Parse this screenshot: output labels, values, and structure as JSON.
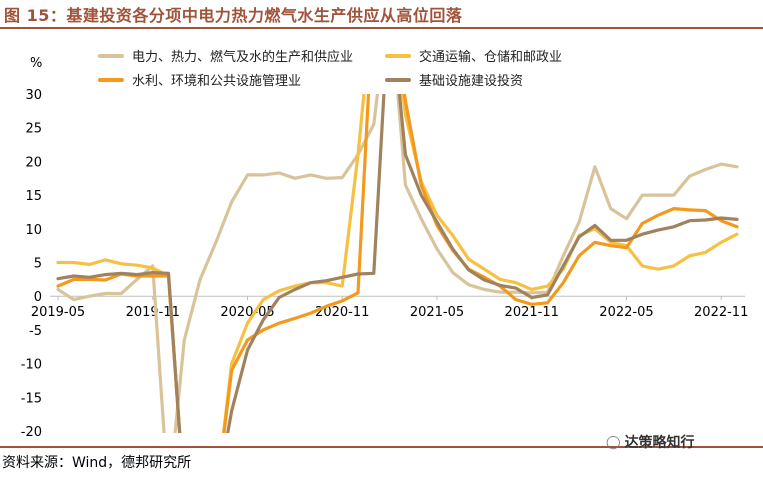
{
  "header": {
    "title": "图 15：基建投资各分项中电力热力燃气水生产供应从高位回落"
  },
  "footer": {
    "source": "资料来源：Wind，德邦研究所",
    "watermark": "达策略知行"
  },
  "colors": {
    "accent": "#a0523a"
  },
  "chart_data": {
    "type": "line",
    "ylabel": "%",
    "ylim": [
      -20,
      30
    ],
    "yticks": [
      30,
      25,
      20,
      15,
      10,
      5,
      0,
      -5,
      -10,
      -15,
      -20
    ],
    "xtick_labels": [
      "2019-05",
      "2019-11",
      "2020-05",
      "2020-11",
      "2021-05",
      "2021-11",
      "2022-05",
      "2022-11"
    ],
    "x": [
      "2019-05",
      "2019-06",
      "2019-07",
      "2019-08",
      "2019-09",
      "2019-10",
      "2019-11",
      "2019-12",
      "2020-01",
      "2020-02",
      "2020-03",
      "2020-04",
      "2020-05",
      "2020-06",
      "2020-07",
      "2020-08",
      "2020-09",
      "2020-10",
      "2020-11",
      "2020-12",
      "2021-01",
      "2021-02",
      "2021-03",
      "2021-04",
      "2021-05",
      "2021-06",
      "2021-07",
      "2021-08",
      "2021-09",
      "2021-10",
      "2021-11",
      "2021-12",
      "2022-01",
      "2022-02",
      "2022-03",
      "2022-04",
      "2022-05",
      "2022-06",
      "2022-07",
      "2022-08",
      "2022-09",
      "2022-10",
      "2022-11",
      "2022-12"
    ],
    "series": [
      {
        "name": "电力、热力、燃气及水的生产和供应业",
        "color": "#d9c39a",
        "values": [
          1.0,
          -0.5,
          0.0,
          0.4,
          0.4,
          2.5,
          4.5,
          null,
          -6.5,
          2.5,
          8.0,
          14.0,
          18.0,
          18.0,
          18.3,
          17.5,
          18.0,
          17.5,
          17.6,
          21.0,
          25.5,
          null,
          16.5,
          11.5,
          7.0,
          3.5,
          1.7,
          1.0,
          0.6,
          0.6,
          0.5,
          0.6,
          6.0,
          11.0,
          19.2,
          13.0,
          11.5,
          15.0,
          15.0,
          15.0,
          17.8,
          18.8,
          19.6,
          19.2
        ]
      },
      {
        "name": "交通运输、仓储和邮政业",
        "color": "#f6c142",
        "values": [
          5.0,
          5.0,
          4.7,
          5.4,
          4.8,
          4.6,
          4.2,
          3.0,
          null,
          null,
          null,
          -10.0,
          -4.0,
          -0.5,
          0.8,
          1.5,
          2.0,
          2.0,
          1.5,
          21.0,
          null,
          null,
          27.0,
          17.0,
          12.0,
          9.0,
          5.5,
          4.0,
          2.5,
          2.0,
          1.0,
          1.5,
          4.0,
          9.0,
          10.0,
          8.0,
          7.5,
          4.5,
          4.0,
          4.5,
          6.0,
          6.5,
          8.0,
          9.2
        ]
      },
      {
        "name": "水利、环境和公共设施管理业",
        "color": "#f39a1e",
        "values": [
          1.5,
          2.5,
          2.5,
          2.4,
          3.3,
          3.0,
          3.0,
          3.0,
          null,
          null,
          null,
          -11.0,
          -6.5,
          -5.0,
          -4.0,
          -3.3,
          -2.5,
          -1.5,
          -0.7,
          0.5,
          null,
          null,
          29.0,
          16.5,
          10.5,
          6.8,
          4.0,
          2.8,
          1.5,
          -0.5,
          -1.2,
          -1.0,
          2.0,
          6.0,
          8.0,
          7.5,
          7.2,
          10.8,
          12.0,
          13.0,
          12.8,
          12.7,
          11.2,
          10.3
        ]
      },
      {
        "name": "基础设施建设投资",
        "color": "#a0825e",
        "values": [
          2.6,
          3.0,
          2.8,
          3.2,
          3.4,
          3.2,
          3.5,
          3.4,
          null,
          null,
          null,
          -17.0,
          -8.0,
          -3.5,
          -0.2,
          1.0,
          2.0,
          2.3,
          2.8,
          3.3,
          3.4,
          null,
          21.0,
          15.0,
          11.0,
          7.0,
          3.9,
          2.4,
          1.6,
          1.2,
          -0.2,
          0.2,
          4.5,
          8.8,
          10.5,
          8.3,
          8.3,
          9.2,
          9.8,
          10.3,
          11.2,
          11.3,
          11.6,
          11.4
        ]
      }
    ]
  }
}
